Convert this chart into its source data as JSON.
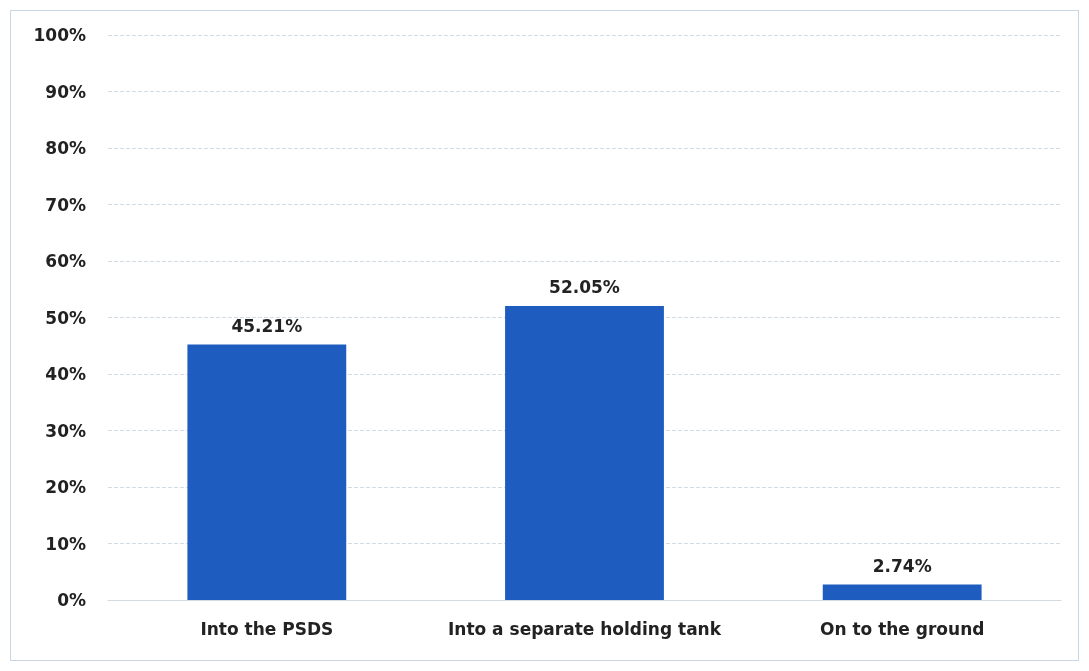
{
  "chart_data": {
    "type": "bar",
    "categories": [
      "Into the PSDS",
      "Into a separate holding tank",
      "On to the ground"
    ],
    "values": [
      45.21,
      52.05,
      2.74
    ],
    "color": "#1f5cbf",
    "value_labels": [
      "45.21%",
      "52.05%",
      "2.74%"
    ],
    "ylim": [
      0,
      100
    ],
    "yticks": [
      {
        "value": 0,
        "label": "0%"
      },
      {
        "value": 10,
        "label": "10%"
      },
      {
        "value": 20,
        "label": "20%"
      },
      {
        "value": 30,
        "label": "30%"
      },
      {
        "value": 40,
        "label": "40%"
      },
      {
        "value": 50,
        "label": "50%"
      },
      {
        "value": 60,
        "label": "60%"
      },
      {
        "value": 70,
        "label": "70%"
      },
      {
        "value": 80,
        "label": "80%"
      },
      {
        "value": 90,
        "label": "90%"
      },
      {
        "value": 100,
        "label": "100%"
      }
    ],
    "grid": "y"
  }
}
